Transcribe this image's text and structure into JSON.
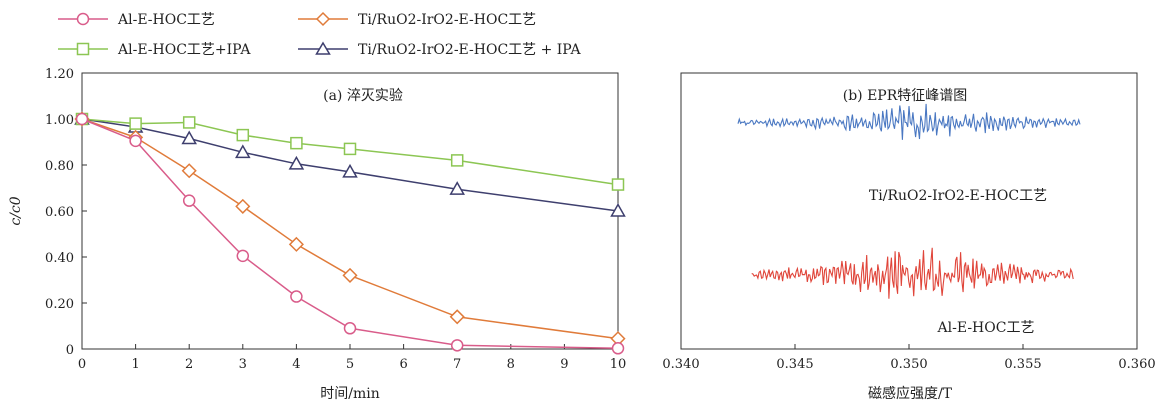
{
  "legend": {
    "items": [
      {
        "label": "Al-E-HOC工艺",
        "color": "#d95c8a",
        "marker": "circle"
      },
      {
        "label": "Ti/RuO2-IrO2-E-HOC工艺",
        "color": "#e07b3a",
        "marker": "diamond"
      },
      {
        "label": "Al-E-HOC工艺+IPA",
        "color": "#8cc653",
        "marker": "square"
      },
      {
        "label": "Ti/RuO2-IrO2-E-HOC工艺 + IPA",
        "color": "#3e3f6e",
        "marker": "triangle"
      }
    ]
  },
  "chart_data": [
    {
      "type": "line",
      "title": "(a) 淬灭实验",
      "xlabel": "时间/min",
      "ylabel": "c/c0",
      "x_ticks": [
        0,
        1,
        2,
        3,
        4,
        5,
        6,
        7,
        8,
        9,
        10
      ],
      "y_ticks": [
        "0",
        "0.20",
        "0.40",
        "0.60",
        "0.80",
        "1.00",
        "1.20"
      ],
      "xlim": [
        0,
        10
      ],
      "ylim": [
        0,
        1.2
      ],
      "grid": false,
      "series": [
        {
          "name": "Al-E-HOC工艺",
          "color": "#d95c8a",
          "marker": "circle",
          "x": [
            0,
            1,
            2,
            3,
            4,
            5,
            7,
            10
          ],
          "y": [
            1.0,
            0.905,
            0.645,
            0.405,
            0.228,
            0.09,
            0.016,
            0.003
          ]
        },
        {
          "name": "Ti/RuO2-IrO2-E-HOC工艺",
          "color": "#e07b3a",
          "marker": "diamond",
          "x": [
            0,
            1,
            2,
            3,
            4,
            5,
            7,
            10
          ],
          "y": [
            1.0,
            0.92,
            0.775,
            0.62,
            0.455,
            0.32,
            0.14,
            0.045
          ]
        },
        {
          "name": "Al-E-HOC工艺+IPA",
          "color": "#8cc653",
          "marker": "square",
          "x": [
            0,
            1,
            2,
            3,
            4,
            5,
            7,
            10
          ],
          "y": [
            1.0,
            0.98,
            0.985,
            0.93,
            0.895,
            0.87,
            0.82,
            0.715
          ]
        },
        {
          "name": "Ti/RuO2-IrO2-E-HOC工艺 + IPA",
          "color": "#3e3f6e",
          "marker": "triangle",
          "x": [
            0,
            1,
            2,
            3,
            4,
            5,
            7,
            10
          ],
          "y": [
            1.0,
            0.965,
            0.915,
            0.855,
            0.805,
            0.77,
            0.695,
            0.6
          ]
        }
      ]
    },
    {
      "type": "line",
      "title": "(b) EPR特征峰谱图",
      "xlabel": "磁感应强度/T",
      "x_ticks": [
        "0.340",
        "0.345",
        "0.350",
        "0.355",
        "0.360"
      ],
      "xlim": [
        0.34,
        0.36
      ],
      "grid": false,
      "series": [
        {
          "label": "Ti/RuO2-IrO2-E-HOC工艺",
          "color": "#4a78c2",
          "x_range": [
            0.3425,
            0.3575
          ],
          "offset": 0.82,
          "amplitude": 0.05,
          "seed": 7
        },
        {
          "label": "Al-E-HOC工艺",
          "color": "#e0453a",
          "x_range": [
            0.3431,
            0.3572
          ],
          "offset": 0.27,
          "amplitude": 0.075,
          "seed": 13
        }
      ]
    }
  ]
}
